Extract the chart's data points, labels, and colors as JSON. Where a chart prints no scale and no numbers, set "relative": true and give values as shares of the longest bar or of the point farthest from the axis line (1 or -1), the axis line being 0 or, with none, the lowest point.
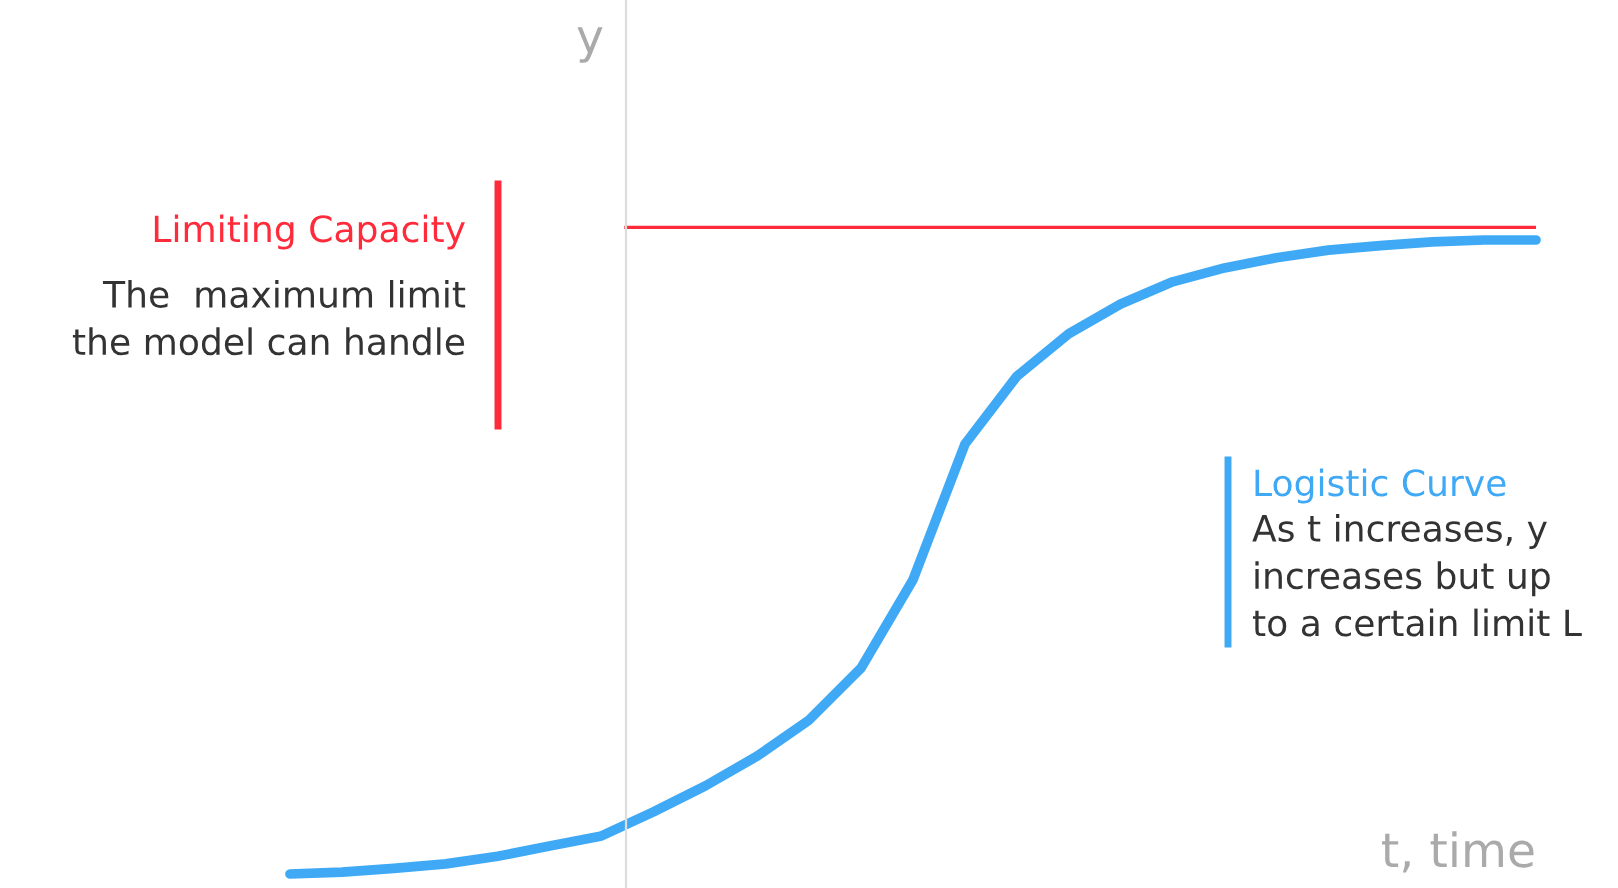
{
  "chart_data": {
    "type": "line",
    "relative": true,
    "xlabel": "t, time",
    "ylabel": "y",
    "categories": [
      null,
      null,
      null,
      null,
      null,
      null,
      null,
      null,
      null,
      null,
      null,
      null,
      null,
      null,
      null,
      null,
      null,
      null,
      null,
      null,
      null,
      null,
      null,
      null,
      null
    ],
    "series": [
      {
        "name": "Logistic Curve",
        "color": "#3fa9f5",
        "values": [
          0,
          0.003,
          0.009,
          0.016,
          0.028,
          0.044,
          0.06,
          0.098,
          0.139,
          0.186,
          0.243,
          0.325,
          0.464,
          0.678,
          0.785,
          0.852,
          0.899,
          0.934,
          0.956,
          0.972,
          0.984,
          0.991,
          0.997,
          1,
          1
        ]
      }
    ],
    "ref_lines": [
      {
        "axis": "y",
        "value": 1.02,
        "label": "Limiting Capacity",
        "color": "#ff2a3a"
      }
    ],
    "annotations": [
      "The  maximum limit\nthe model can handle",
      "As t increases, y\nincreases but up\nto a certain limit L"
    ],
    "grid": false,
    "legend": false,
    "marker": "none",
    "line_style": "solid"
  }
}
